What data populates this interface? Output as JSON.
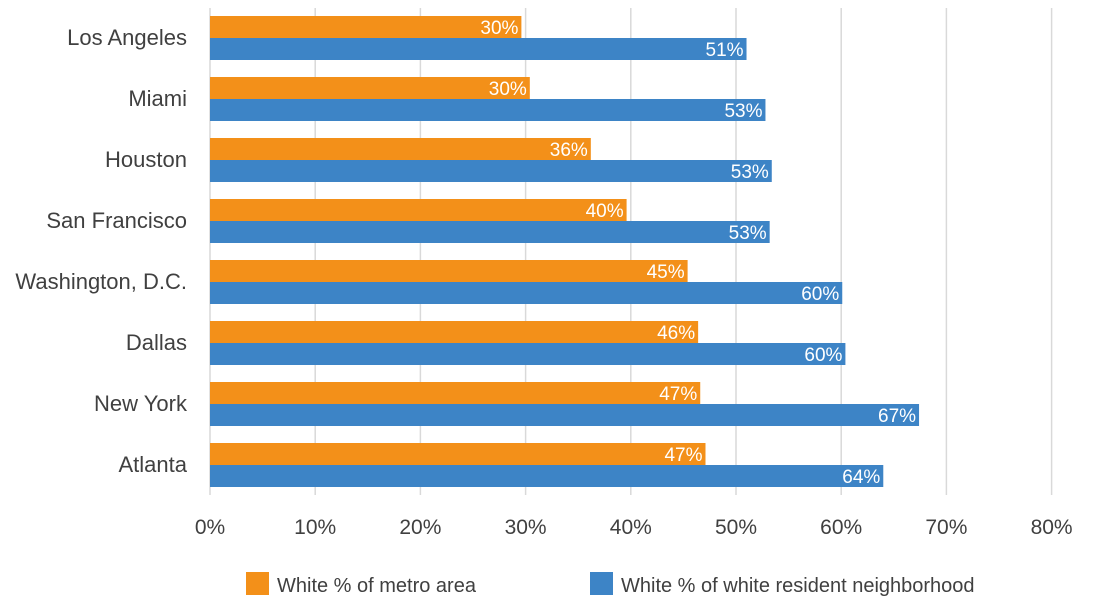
{
  "chart_data": {
    "type": "bar",
    "orientation": "horizontal",
    "categories": [
      "Los Angeles",
      "Miami",
      "Houston",
      "San Francisco",
      "Washington, D.C.",
      "Dallas",
      "New York",
      "Atlanta"
    ],
    "series": [
      {
        "name": "White % of metro area",
        "color": "#f39019",
        "values": [
          29.6,
          30.4,
          36.2,
          39.6,
          45.4,
          46.4,
          46.6,
          47.1
        ],
        "labels": [
          "30%",
          "30%",
          "36%",
          "40%",
          "45%",
          "46%",
          "47%",
          "47%"
        ]
      },
      {
        "name": "White % of white resident neighborhood",
        "color": "#3d84c6",
        "values": [
          51.0,
          52.8,
          53.4,
          53.2,
          60.1,
          60.4,
          67.4,
          64.0
        ],
        "labels": [
          "51%",
          "53%",
          "53%",
          "53%",
          "60%",
          "60%",
          "67%",
          "64%"
        ]
      }
    ],
    "x_ticks": [
      "0%",
      "10%",
      "20%",
      "30%",
      "40%",
      "50%",
      "60%",
      "70%",
      "80%"
    ],
    "xlim": [
      0,
      80
    ],
    "grid": true,
    "legend_position": "bottom",
    "title": "",
    "xlabel": "",
    "ylabel": ""
  }
}
